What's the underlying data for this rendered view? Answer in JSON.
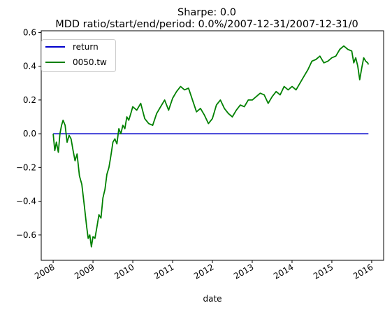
{
  "chart_data": {
    "type": "line",
    "title": "Sharpe: 0.0",
    "subtitle": "MDD ratio/start/end/period: 0.0%/2007-12-31/2007-12-31/0",
    "xlabel": "date",
    "ylabel": "",
    "xlim": [
      2007.7,
      2016.3
    ],
    "ylim": [
      -0.75,
      0.61
    ],
    "x_ticks": [
      2008,
      2009,
      2010,
      2011,
      2012,
      2013,
      2014,
      2015,
      2016
    ],
    "x_tick_labels": [
      "2008",
      "2009",
      "2010",
      "2011",
      "2012",
      "2013",
      "2014",
      "2015",
      "2016"
    ],
    "y_ticks": [
      -0.6,
      -0.4,
      -0.2,
      0.0,
      0.2,
      0.4,
      0.6
    ],
    "y_tick_labels": [
      "−0.6",
      "−0.4",
      "−0.2",
      "0.0",
      "0.2",
      "0.4",
      "0.6"
    ],
    "grid": false,
    "legend_position": "top-left",
    "series": [
      {
        "name": "return",
        "color": "#0000cc",
        "x": [
          2008.0,
          2015.92
        ],
        "y": [
          0.0,
          0.0
        ]
      },
      {
        "name": "0050.tw",
        "color": "#008000",
        "x": [
          2008.0,
          2008.04,
          2008.08,
          2008.13,
          2008.17,
          2008.21,
          2008.25,
          2008.3,
          2008.35,
          2008.4,
          2008.45,
          2008.5,
          2008.55,
          2008.6,
          2008.66,
          2008.72,
          2008.78,
          2008.84,
          2008.88,
          2008.92,
          2008.96,
          2009.0,
          2009.05,
          2009.1,
          2009.15,
          2009.2,
          2009.25,
          2009.3,
          2009.35,
          2009.4,
          2009.45,
          2009.5,
          2009.55,
          2009.6,
          2009.65,
          2009.7,
          2009.75,
          2009.8,
          2009.85,
          2009.9,
          2009.95,
          2010.0,
          2010.1,
          2010.2,
          2010.3,
          2010.4,
          2010.5,
          2010.6,
          2010.7,
          2010.8,
          2010.9,
          2011.0,
          2011.1,
          2011.2,
          2011.3,
          2011.4,
          2011.5,
          2011.6,
          2011.7,
          2011.8,
          2011.9,
          2012.0,
          2012.1,
          2012.2,
          2012.3,
          2012.4,
          2012.5,
          2012.6,
          2012.7,
          2012.8,
          2012.9,
          2013.0,
          2013.1,
          2013.2,
          2013.3,
          2013.4,
          2013.5,
          2013.6,
          2013.7,
          2013.8,
          2013.9,
          2014.0,
          2014.1,
          2014.2,
          2014.3,
          2014.4,
          2014.5,
          2014.6,
          2014.7,
          2014.8,
          2014.9,
          2015.0,
          2015.1,
          2015.2,
          2015.3,
          2015.4,
          2015.5,
          2015.55,
          2015.6,
          2015.65,
          2015.7,
          2015.75,
          2015.8,
          2015.85,
          2015.9,
          2015.92
        ],
        "y": [
          0.0,
          -0.1,
          -0.05,
          -0.11,
          0.0,
          0.05,
          0.08,
          0.05,
          -0.05,
          -0.01,
          -0.03,
          -0.1,
          -0.16,
          -0.12,
          -0.25,
          -0.3,
          -0.42,
          -0.55,
          -0.62,
          -0.6,
          -0.67,
          -0.61,
          -0.62,
          -0.55,
          -0.48,
          -0.5,
          -0.38,
          -0.33,
          -0.24,
          -0.2,
          -0.13,
          -0.05,
          -0.03,
          -0.06,
          0.03,
          0.0,
          0.05,
          0.03,
          0.1,
          0.08,
          0.12,
          0.16,
          0.14,
          0.18,
          0.09,
          0.06,
          0.05,
          0.12,
          0.16,
          0.2,
          0.14,
          0.21,
          0.25,
          0.28,
          0.26,
          0.27,
          0.2,
          0.13,
          0.15,
          0.11,
          0.06,
          0.09,
          0.17,
          0.2,
          0.15,
          0.12,
          0.1,
          0.14,
          0.17,
          0.16,
          0.2,
          0.2,
          0.22,
          0.24,
          0.23,
          0.18,
          0.22,
          0.25,
          0.23,
          0.28,
          0.26,
          0.28,
          0.26,
          0.3,
          0.34,
          0.38,
          0.43,
          0.44,
          0.46,
          0.42,
          0.43,
          0.45,
          0.46,
          0.5,
          0.52,
          0.5,
          0.49,
          0.42,
          0.45,
          0.4,
          0.32,
          0.39,
          0.45,
          0.43,
          0.42,
          0.41
        ]
      }
    ]
  }
}
